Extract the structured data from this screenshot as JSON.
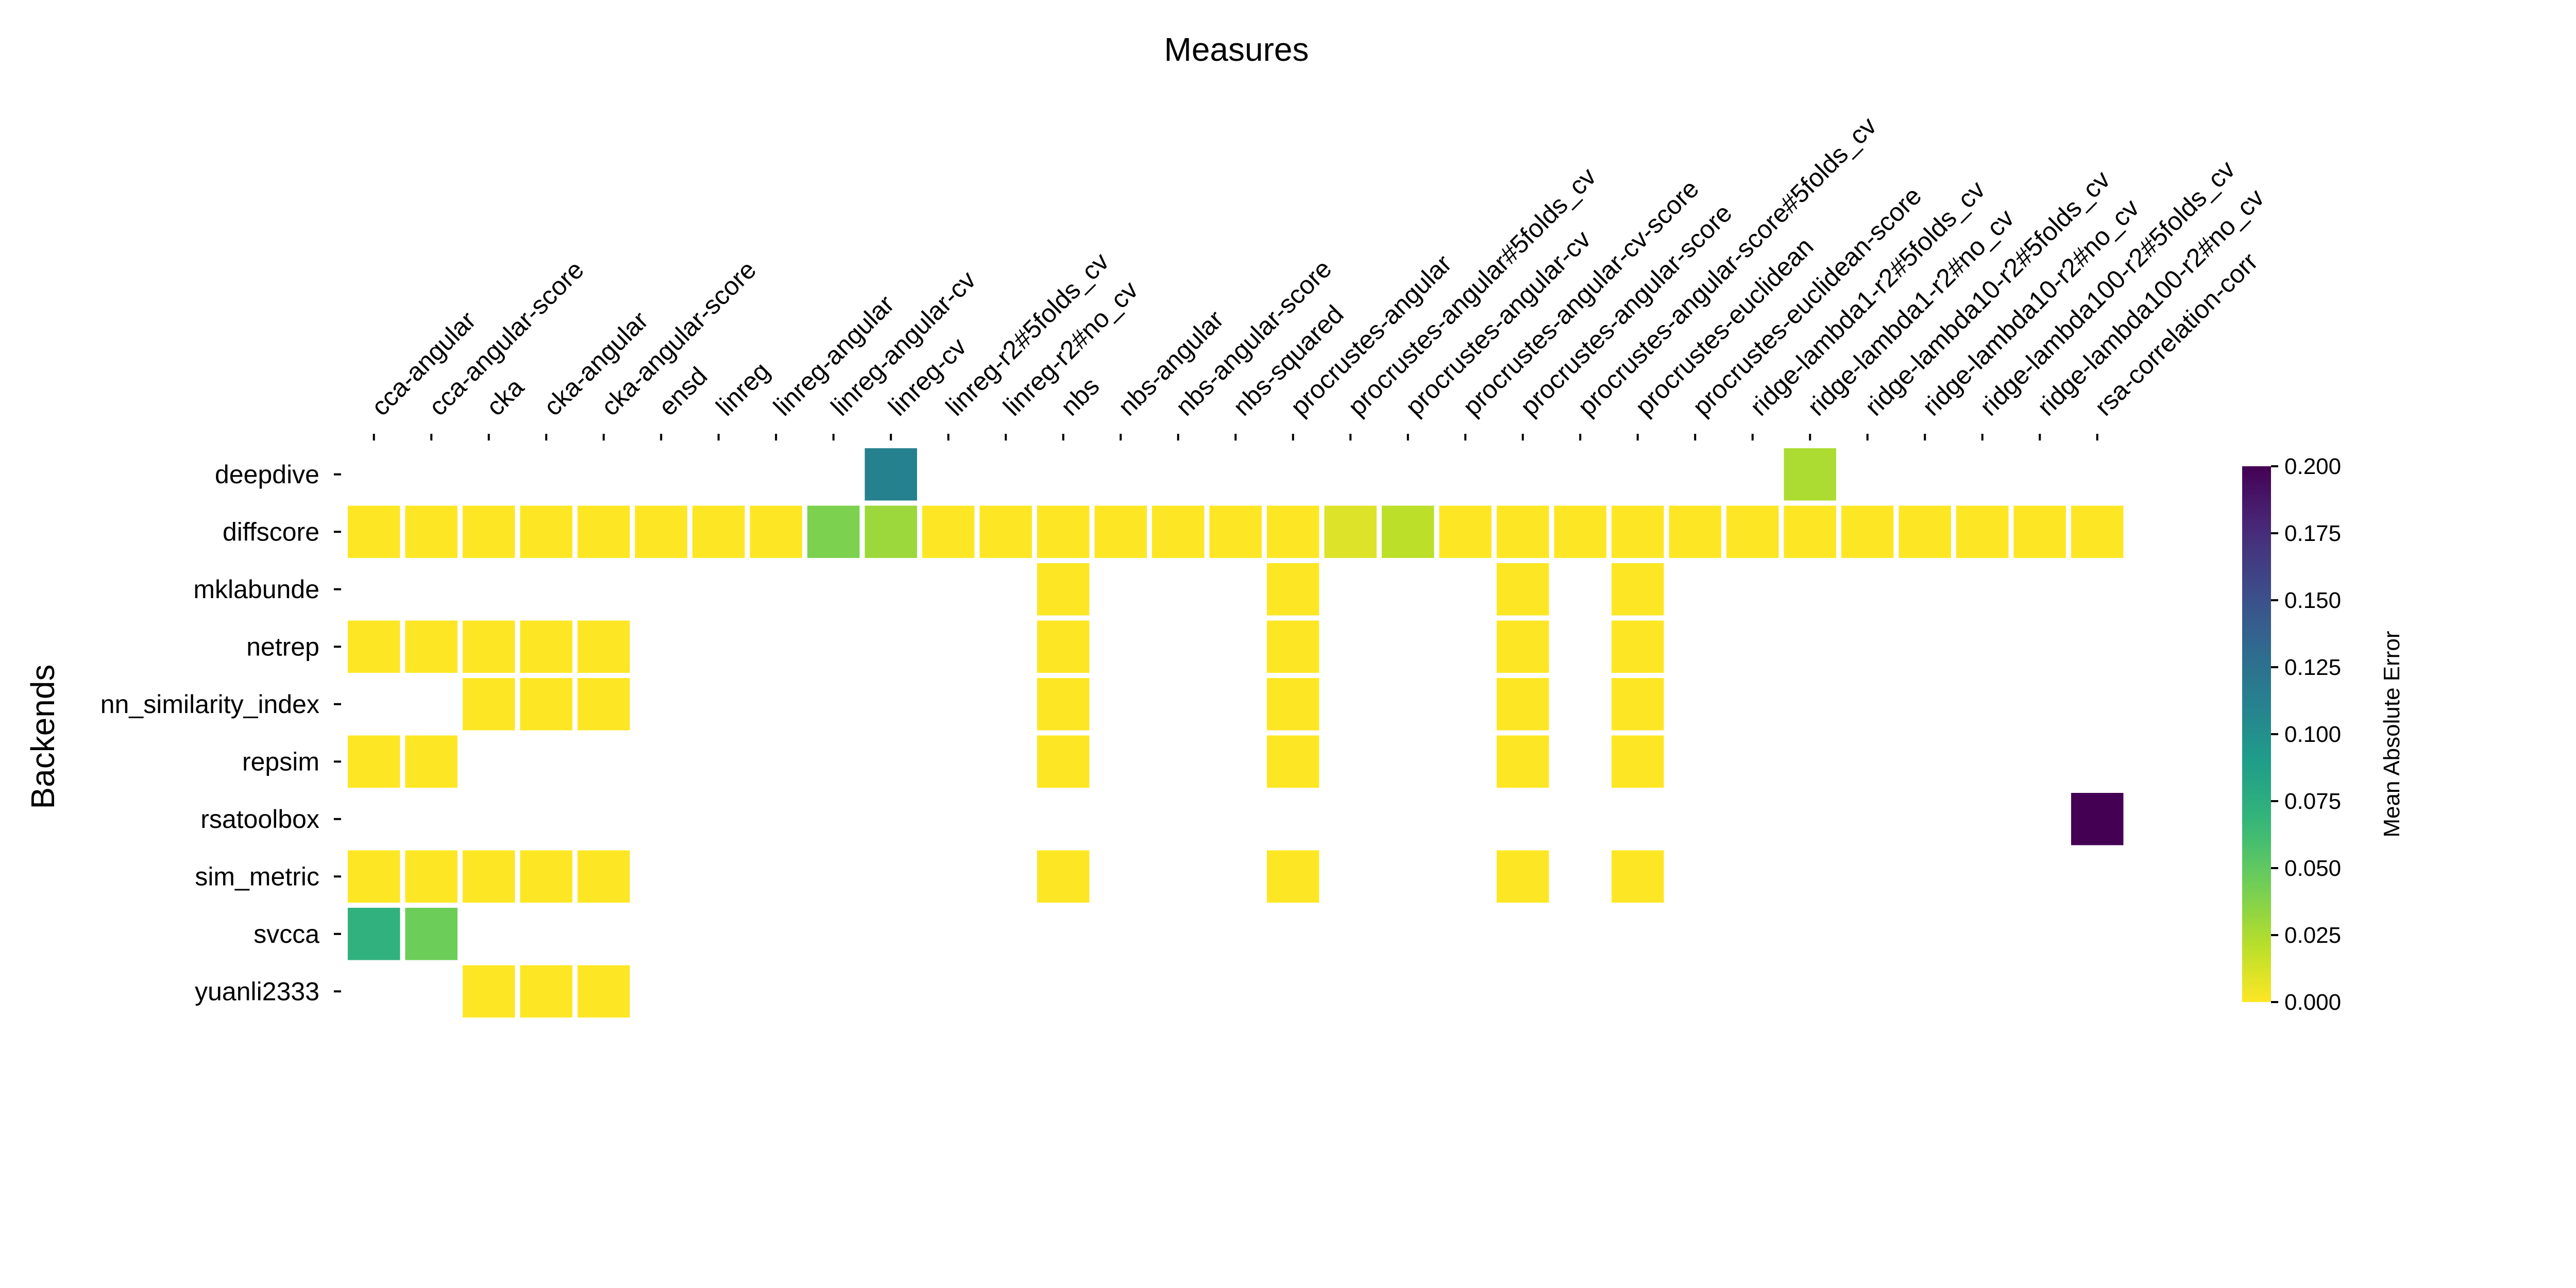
{
  "chart_data": {
    "type": "heatmap",
    "title": "Measures",
    "xlabel": "",
    "ylabel": "Backends",
    "x_axis_position": "top",
    "categories_x": [
      "cca-angular",
      "cca-angular-score",
      "cka",
      "cka-angular",
      "cka-angular-score",
      "ensd",
      "linreg",
      "linreg-angular",
      "linreg-angular-cv",
      "linreg-cv",
      "linreg-r2#5folds_cv",
      "linreg-r2#no_cv",
      "nbs",
      "nbs-angular",
      "nbs-angular-score",
      "nbs-squared",
      "procrustes-angular",
      "procrustes-angular#5folds_cv",
      "procrustes-angular-cv",
      "procrustes-angular-cv-score",
      "procrustes-angular-score",
      "procrustes-angular-score#5folds_cv",
      "procrustes-euclidean",
      "procrustes-euclidean-score",
      "ridge-lambda1-r2#5folds_cv",
      "ridge-lambda1-r2#no_cv",
      "ridge-lambda10-r2#5folds_cv",
      "ridge-lambda10-r2#no_cv",
      "ridge-lambda100-r2#5folds_cv",
      "ridge-lambda100-r2#no_cv",
      "rsa-correlation-corr"
    ],
    "categories_y": [
      "deepdive",
      "diffscore",
      "mklabunde",
      "netrep",
      "nn_similarity_index",
      "repsim",
      "rsatoolbox",
      "sim_metric",
      "svcca",
      "yuanli2333"
    ],
    "cells": [
      {
        "x": "linreg-cv",
        "y": "deepdive",
        "value": 0.112
      },
      {
        "x": "ridge-lambda1-r2#no_cv",
        "y": "deepdive",
        "value": 0.025
      },
      {
        "x": "cca-angular",
        "y": "diffscore",
        "value": 0.0
      },
      {
        "x": "cca-angular-score",
        "y": "diffscore",
        "value": 0.0
      },
      {
        "x": "cka",
        "y": "diffscore",
        "value": 0.0
      },
      {
        "x": "cka-angular",
        "y": "diffscore",
        "value": 0.0
      },
      {
        "x": "cka-angular-score",
        "y": "diffscore",
        "value": 0.0
      },
      {
        "x": "ensd",
        "y": "diffscore",
        "value": 0.0
      },
      {
        "x": "linreg",
        "y": "diffscore",
        "value": 0.0
      },
      {
        "x": "linreg-angular",
        "y": "diffscore",
        "value": 0.0
      },
      {
        "x": "linreg-angular-cv",
        "y": "diffscore",
        "value": 0.04
      },
      {
        "x": "linreg-cv",
        "y": "diffscore",
        "value": 0.03
      },
      {
        "x": "linreg-r2#5folds_cv",
        "y": "diffscore",
        "value": 0.0
      },
      {
        "x": "linreg-r2#no_cv",
        "y": "diffscore",
        "value": 0.0
      },
      {
        "x": "nbs",
        "y": "diffscore",
        "value": 0.0
      },
      {
        "x": "nbs-angular",
        "y": "diffscore",
        "value": 0.0
      },
      {
        "x": "nbs-angular-score",
        "y": "diffscore",
        "value": 0.0
      },
      {
        "x": "nbs-squared",
        "y": "diffscore",
        "value": 0.0
      },
      {
        "x": "procrustes-angular",
        "y": "diffscore",
        "value": 0.0
      },
      {
        "x": "procrustes-angular#5folds_cv",
        "y": "diffscore",
        "value": 0.01
      },
      {
        "x": "procrustes-angular-cv",
        "y": "diffscore",
        "value": 0.02
      },
      {
        "x": "procrustes-angular-cv-score",
        "y": "diffscore",
        "value": 0.0
      },
      {
        "x": "procrustes-angular-score",
        "y": "diffscore",
        "value": 0.0
      },
      {
        "x": "procrustes-angular-score#5folds_cv",
        "y": "diffscore",
        "value": 0.0
      },
      {
        "x": "procrustes-euclidean",
        "y": "diffscore",
        "value": 0.0
      },
      {
        "x": "procrustes-euclidean-score",
        "y": "diffscore",
        "value": 0.0
      },
      {
        "x": "ridge-lambda1-r2#5folds_cv",
        "y": "diffscore",
        "value": 0.0
      },
      {
        "x": "ridge-lambda1-r2#no_cv",
        "y": "diffscore",
        "value": 0.0
      },
      {
        "x": "ridge-lambda10-r2#5folds_cv",
        "y": "diffscore",
        "value": 0.0
      },
      {
        "x": "ridge-lambda10-r2#no_cv",
        "y": "diffscore",
        "value": 0.0
      },
      {
        "x": "ridge-lambda100-r2#5folds_cv",
        "y": "diffscore",
        "value": 0.0
      },
      {
        "x": "ridge-lambda100-r2#no_cv",
        "y": "diffscore",
        "value": 0.0
      },
      {
        "x": "rsa-correlation-corr",
        "y": "diffscore",
        "value": 0.0
      },
      {
        "x": "nbs",
        "y": "mklabunde",
        "value": 0.0
      },
      {
        "x": "procrustes-angular",
        "y": "mklabunde",
        "value": 0.0
      },
      {
        "x": "procrustes-angular-score",
        "y": "mklabunde",
        "value": 0.0
      },
      {
        "x": "procrustes-euclidean",
        "y": "mklabunde",
        "value": 0.0
      },
      {
        "x": "cca-angular",
        "y": "netrep",
        "value": 0.0
      },
      {
        "x": "cca-angular-score",
        "y": "netrep",
        "value": 0.0
      },
      {
        "x": "cka",
        "y": "netrep",
        "value": 0.0
      },
      {
        "x": "cka-angular",
        "y": "netrep",
        "value": 0.0
      },
      {
        "x": "cka-angular-score",
        "y": "netrep",
        "value": 0.0
      },
      {
        "x": "nbs",
        "y": "netrep",
        "value": 0.0
      },
      {
        "x": "procrustes-angular",
        "y": "netrep",
        "value": 0.0
      },
      {
        "x": "procrustes-angular-score",
        "y": "netrep",
        "value": 0.0
      },
      {
        "x": "procrustes-euclidean",
        "y": "netrep",
        "value": 0.0
      },
      {
        "x": "cka",
        "y": "nn_similarity_index",
        "value": 0.0
      },
      {
        "x": "cka-angular",
        "y": "nn_similarity_index",
        "value": 0.0
      },
      {
        "x": "cka-angular-score",
        "y": "nn_similarity_index",
        "value": 0.0
      },
      {
        "x": "nbs",
        "y": "nn_similarity_index",
        "value": 0.0
      },
      {
        "x": "procrustes-angular",
        "y": "nn_similarity_index",
        "value": 0.0
      },
      {
        "x": "procrustes-angular-score",
        "y": "nn_similarity_index",
        "value": 0.0
      },
      {
        "x": "procrustes-euclidean",
        "y": "nn_similarity_index",
        "value": 0.0
      },
      {
        "x": "cca-angular",
        "y": "repsim",
        "value": 0.0
      },
      {
        "x": "cca-angular-score",
        "y": "repsim",
        "value": 0.0
      },
      {
        "x": "nbs",
        "y": "repsim",
        "value": 0.0
      },
      {
        "x": "procrustes-angular",
        "y": "repsim",
        "value": 0.0
      },
      {
        "x": "procrustes-angular-score",
        "y": "repsim",
        "value": 0.0
      },
      {
        "x": "procrustes-euclidean",
        "y": "repsim",
        "value": 0.0
      },
      {
        "x": "rsa-correlation-corr",
        "y": "rsatoolbox",
        "value": 0.2
      },
      {
        "x": "cca-angular",
        "y": "sim_metric",
        "value": 0.0
      },
      {
        "x": "cca-angular-score",
        "y": "sim_metric",
        "value": 0.0
      },
      {
        "x": "cka",
        "y": "sim_metric",
        "value": 0.0
      },
      {
        "x": "cka-angular",
        "y": "sim_metric",
        "value": 0.0
      },
      {
        "x": "cka-angular-score",
        "y": "sim_metric",
        "value": 0.0
      },
      {
        "x": "nbs",
        "y": "sim_metric",
        "value": 0.0
      },
      {
        "x": "procrustes-angular",
        "y": "sim_metric",
        "value": 0.0
      },
      {
        "x": "procrustes-angular-score",
        "y": "sim_metric",
        "value": 0.0
      },
      {
        "x": "procrustes-euclidean",
        "y": "sim_metric",
        "value": 0.0
      },
      {
        "x": "cca-angular",
        "y": "svcca",
        "value": 0.072
      },
      {
        "x": "cca-angular-score",
        "y": "svcca",
        "value": 0.045
      },
      {
        "x": "cka",
        "y": "yuanli2333",
        "value": 0.0
      },
      {
        "x": "cka-angular",
        "y": "yuanli2333",
        "value": 0.0
      },
      {
        "x": "cka-angular-score",
        "y": "yuanli2333",
        "value": 0.0
      }
    ],
    "colorbar": {
      "label": "Mean Absolute Error",
      "colormap": "viridis_r",
      "range": [
        0.0,
        0.2
      ],
      "ticks": [
        "0.000",
        "0.025",
        "0.050",
        "0.075",
        "0.100",
        "0.125",
        "0.150",
        "0.175",
        "0.200"
      ]
    },
    "grid": false
  }
}
